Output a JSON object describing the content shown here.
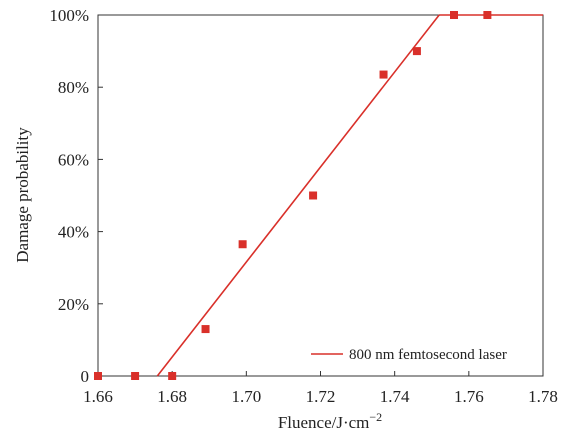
{
  "chart_data": {
    "type": "scatter",
    "xlabel": "Fluence/J·cm",
    "xlabel_sup": "−2",
    "ylabel": "Damage probability",
    "xlim": [
      1.66,
      1.78
    ],
    "ylim": [
      0,
      1
    ],
    "x_ticks": [
      1.66,
      1.68,
      1.7,
      1.72,
      1.74,
      1.76,
      1.78
    ],
    "x_tick_labels": [
      "1.66",
      "1.68",
      "1.70",
      "1.72",
      "1.74",
      "1.76",
      "1.78"
    ],
    "y_ticks": [
      0,
      0.2,
      0.4,
      0.6,
      0.8,
      1.0
    ],
    "y_tick_labels": [
      "0",
      "20%",
      "40%",
      "60%",
      "80%",
      "100%"
    ],
    "grid": false,
    "legend_position": "bottom-right",
    "series": [
      {
        "kind": "scatter",
        "marker": "square",
        "color": "#d9302a",
        "points": [
          {
            "x": 1.66,
            "y": 0.0
          },
          {
            "x": 1.67,
            "y": 0.0
          },
          {
            "x": 1.68,
            "y": 0.0
          },
          {
            "x": 1.689,
            "y": 0.13
          },
          {
            "x": 1.699,
            "y": 0.365
          },
          {
            "x": 1.718,
            "y": 0.5
          },
          {
            "x": 1.737,
            "y": 0.835
          },
          {
            "x": 1.746,
            "y": 0.9
          },
          {
            "x": 1.756,
            "y": 1.0
          },
          {
            "x": 1.765,
            "y": 1.0
          }
        ]
      },
      {
        "kind": "line",
        "name": "800 nm femtosecond laser",
        "color": "#d9302a",
        "points": [
          {
            "x": 1.676,
            "y": 0.0
          },
          {
            "x": 1.752,
            "y": 1.0
          }
        ]
      }
    ]
  }
}
